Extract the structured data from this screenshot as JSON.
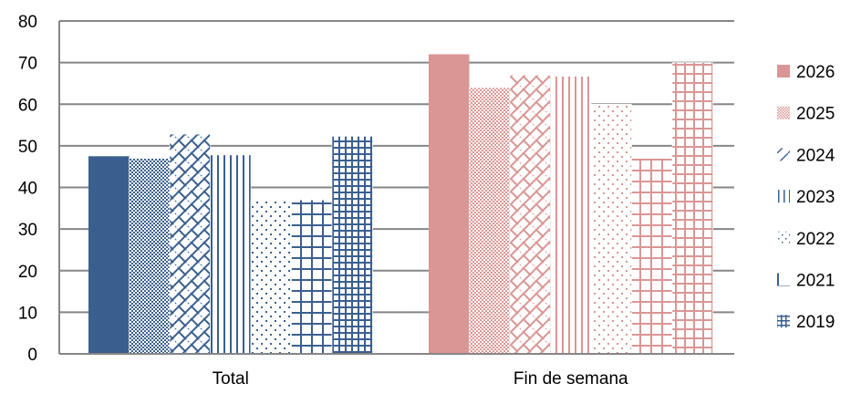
{
  "chart_data": {
    "type": "bar",
    "categories": [
      "Total",
      "Fin de semana"
    ],
    "series": [
      {
        "name": "2026",
        "values": [
          47.5,
          72
        ],
        "category_colors": [
          "#3a5f8f",
          "#d99694"
        ]
      },
      {
        "name": "2025",
        "values": [
          47,
          64
        ],
        "category_colors": [
          "#3a5f8f",
          "#d99694"
        ]
      },
      {
        "name": "2024",
        "values": [
          52.8,
          67
        ],
        "category_colors": [
          "#3a5f8f",
          "#d99694"
        ]
      },
      {
        "name": "2023",
        "values": [
          47.8,
          66.7
        ],
        "category_colors": [
          "#3a5f8f",
          "#d99694"
        ]
      },
      {
        "name": "2022",
        "values": [
          37,
          60
        ],
        "category_colors": [
          "#3a5f8f",
          "#d99694"
        ]
      },
      {
        "name": "2021",
        "values": [
          37,
          47
        ],
        "category_colors": [
          "#3a5f8f",
          "#d99694"
        ]
      },
      {
        "name": "2019",
        "values": [
          52.3,
          70
        ],
        "category_colors": [
          "#3a5f8f",
          "#d99694"
        ]
      }
    ],
    "ylim": [
      0,
      80
    ],
    "yticks": [
      0,
      10,
      20,
      30,
      40,
      50,
      60,
      70,
      80
    ],
    "title": "",
    "xlabel": "",
    "ylabel": "",
    "grid": true,
    "legend_position": "right",
    "colors": {
      "blue": "#3a5f8f",
      "pink": "#d99694",
      "grid": "#868686",
      "axis": "#868686"
    }
  }
}
